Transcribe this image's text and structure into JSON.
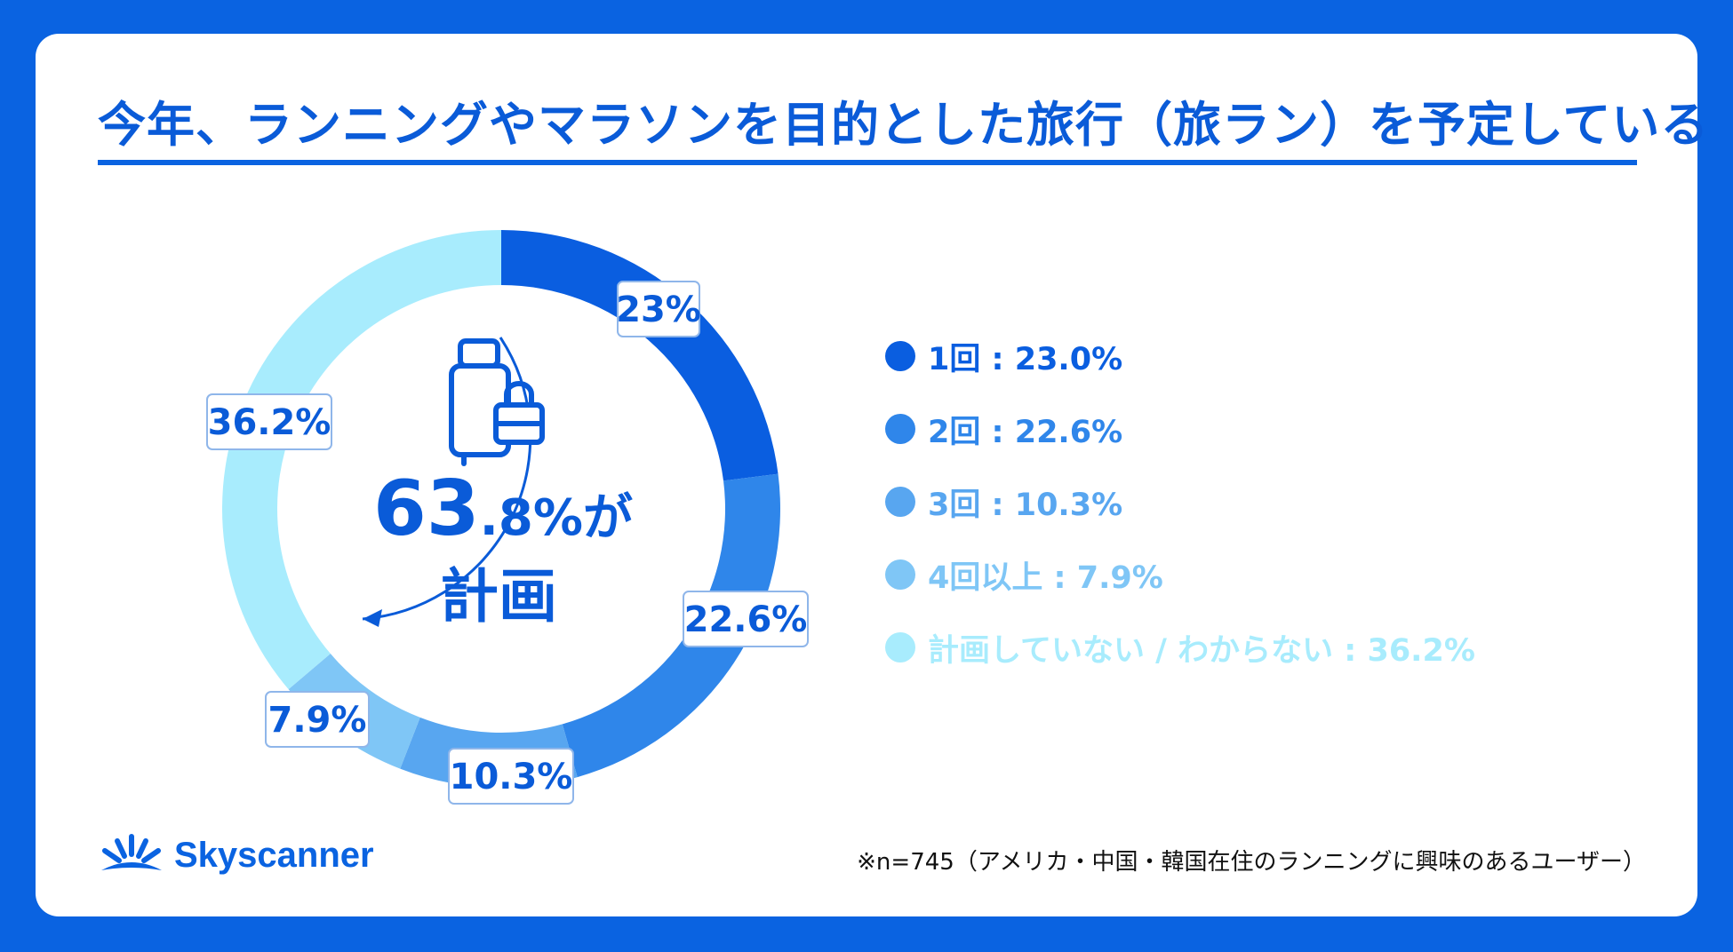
{
  "title": "今年、ランニングやマラソンを目的とした旅行（旅ラン）を予定している",
  "center": {
    "value_main": "63",
    "value_rest": ".8%が",
    "line2": "計画"
  },
  "chart_data": {
    "type": "pie",
    "donut": true,
    "title": "今年、ランニングやマラソンを目的とした旅行（旅ラン）を予定している",
    "categories": [
      "1回",
      "2回",
      "3回",
      "4回以上",
      "計画していない / わからない"
    ],
    "values": [
      23.0,
      22.6,
      10.3,
      7.9,
      36.2
    ],
    "slice_labels": [
      "23%",
      "22.6%",
      "10.3%",
      "7.9%",
      "36.2%"
    ],
    "colors": [
      "#0a5ee0",
      "#2f86ea",
      "#58a6f0",
      "#7fc6f6",
      "#a8ecfd"
    ],
    "legend_position": "right"
  },
  "legend": [
    {
      "text": "1回 : 23.0%",
      "color": "#0a5ee0"
    },
    {
      "text": "2回 : 22.6%",
      "color": "#2f86ea"
    },
    {
      "text": "3回 : 10.3%",
      "color": "#58a6f0"
    },
    {
      "text": "4回以上 : 7.9%",
      "color": "#7fc6f6"
    },
    {
      "text": "計画していない / わからない : 36.2%",
      "color": "#a8ecfd"
    }
  ],
  "logo": {
    "text": "Skyscanner"
  },
  "footnote": "※n=745（アメリカ・中国・韓国在住のランニングに興味のあるユーザー）",
  "colors": {
    "brand": "#0a63e1",
    "text_blue": "#0a5bd8"
  }
}
